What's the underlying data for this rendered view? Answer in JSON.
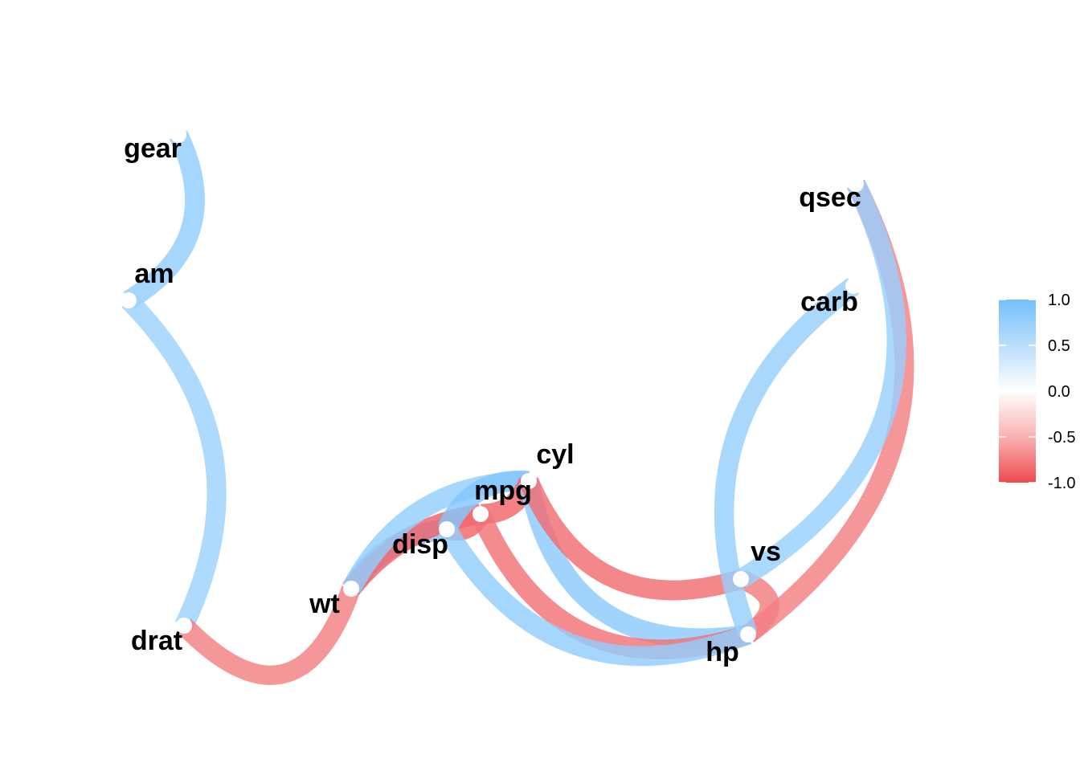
{
  "chart_data": {
    "type": "network",
    "nodes": [
      {
        "id": "gear",
        "label": "gear"
      },
      {
        "id": "am",
        "label": "am"
      },
      {
        "id": "drat",
        "label": "drat"
      },
      {
        "id": "wt",
        "label": "wt"
      },
      {
        "id": "disp",
        "label": "disp"
      },
      {
        "id": "mpg",
        "label": "mpg"
      },
      {
        "id": "cyl",
        "label": "cyl"
      },
      {
        "id": "hp",
        "label": "hp"
      },
      {
        "id": "vs",
        "label": "vs"
      },
      {
        "id": "qsec",
        "label": "qsec"
      },
      {
        "id": "carb",
        "label": "carb"
      }
    ],
    "edges": [
      {
        "from": "gear",
        "to": "am",
        "r": 0.79
      },
      {
        "from": "am",
        "to": "drat",
        "r": 0.71
      },
      {
        "from": "drat",
        "to": "wt",
        "r": -0.71
      },
      {
        "from": "wt",
        "to": "disp",
        "r": 0.89
      },
      {
        "from": "wt",
        "to": "mpg",
        "r": -0.87
      },
      {
        "from": "wt",
        "to": "cyl",
        "r": 0.78
      },
      {
        "from": "disp",
        "to": "mpg",
        "r": -0.85
      },
      {
        "from": "disp",
        "to": "cyl",
        "r": 0.9
      },
      {
        "from": "mpg",
        "to": "cyl",
        "r": -0.85
      },
      {
        "from": "cyl",
        "to": "hp",
        "r": 0.83
      },
      {
        "from": "cyl",
        "to": "vs",
        "r": -0.81
      },
      {
        "from": "mpg",
        "to": "hp",
        "r": -0.78
      },
      {
        "from": "disp",
        "to": "hp",
        "r": 0.79
      },
      {
        "from": "hp",
        "to": "vs",
        "r": -0.72
      },
      {
        "from": "hp",
        "to": "qsec",
        "r": -0.71
      },
      {
        "from": "hp",
        "to": "carb",
        "r": 0.75
      },
      {
        "from": "vs",
        "to": "qsec",
        "r": 0.74
      }
    ],
    "legend": {
      "ticks": [
        "1.0",
        "0.5",
        "0.0",
        "-0.5",
        "-1.0"
      ],
      "placement": "right",
      "colors": {
        "positive": "#74C0FC",
        "neutral": "#FFFFFF",
        "negative": "#EE4B4F"
      }
    }
  }
}
